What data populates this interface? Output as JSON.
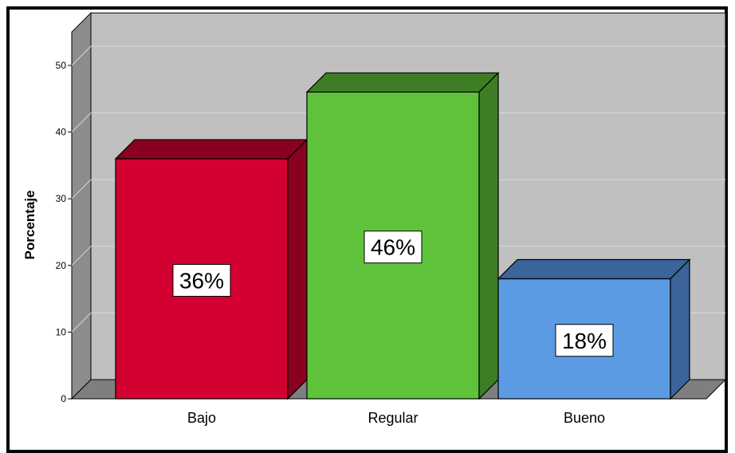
{
  "chart_data": {
    "type": "bar",
    "title": "",
    "xlabel": "",
    "ylabel": "Porcentaje",
    "categories": [
      "Bajo",
      "Regular",
      "Bueno"
    ],
    "values": [
      36,
      46,
      18
    ],
    "data_labels": [
      "36%",
      "46%",
      "18%"
    ],
    "ylim": [
      0,
      55
    ],
    "yticks": [
      "0",
      "10",
      "20",
      "30",
      "40",
      "50"
    ],
    "grid": true,
    "three_d": true,
    "colors": {
      "front": [
        "#D30131",
        "#5EC33A",
        "#5B9BE3"
      ],
      "top": [
        "#8A0120",
        "#3D7E24",
        "#3A649A"
      ],
      "side": [
        "#8A0120",
        "#3D7E24",
        "#3A649A"
      ],
      "plot_back": "#C0C0C0",
      "plot_floor": "#7F7F7F",
      "plot_wall": "#8C8C8C",
      "gridline": "#D9D9D9"
    }
  }
}
